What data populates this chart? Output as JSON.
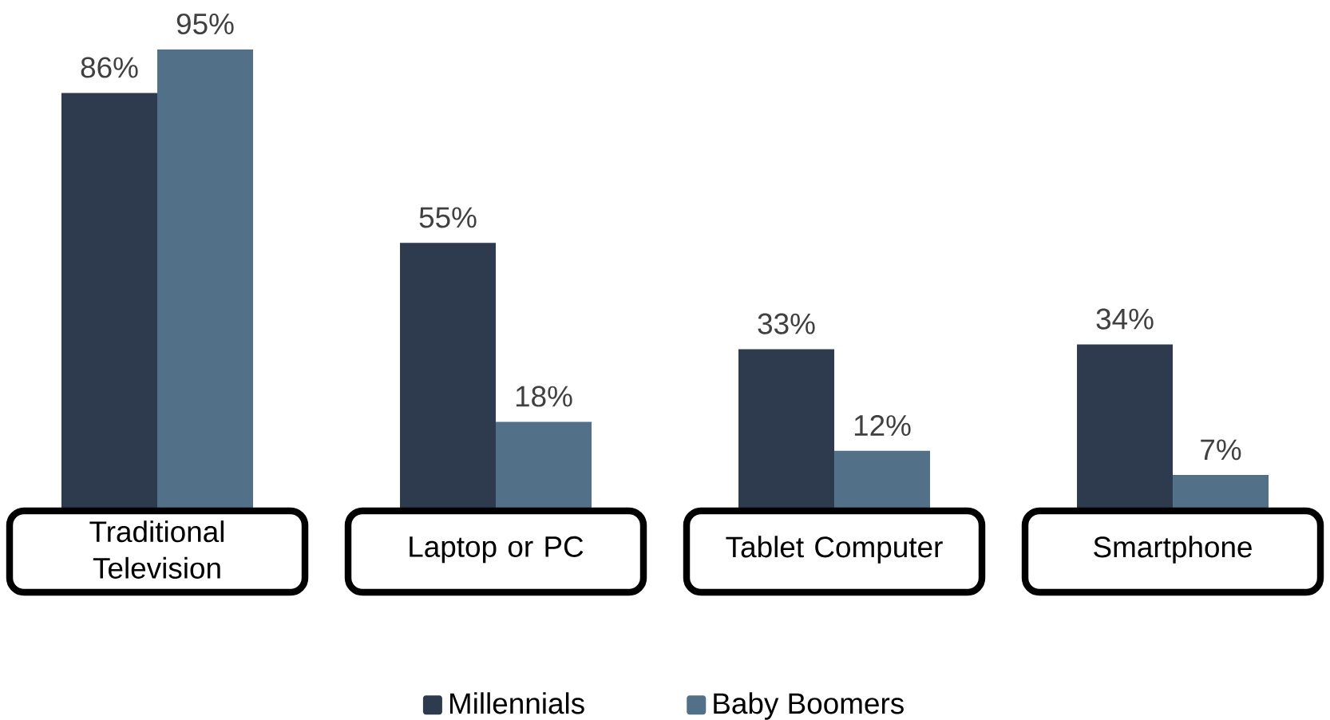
{
  "chart_data": {
    "type": "bar",
    "categories": [
      "Traditional Television",
      "Laptop or PC",
      "Tablet Computer",
      "Smartphone"
    ],
    "series": [
      {
        "name": "Millennials",
        "color": "#2e3b4e",
        "values": [
          86,
          55,
          33,
          34
        ],
        "value_labels": [
          "86%",
          "55%",
          "33%",
          "34%"
        ]
      },
      {
        "name": "Baby Boomers",
        "color": "#527088",
        "values": [
          95,
          18,
          12,
          7
        ],
        "value_labels": [
          "95%",
          "18%",
          "12%",
          "7%"
        ]
      }
    ],
    "legend": "bottom"
  }
}
